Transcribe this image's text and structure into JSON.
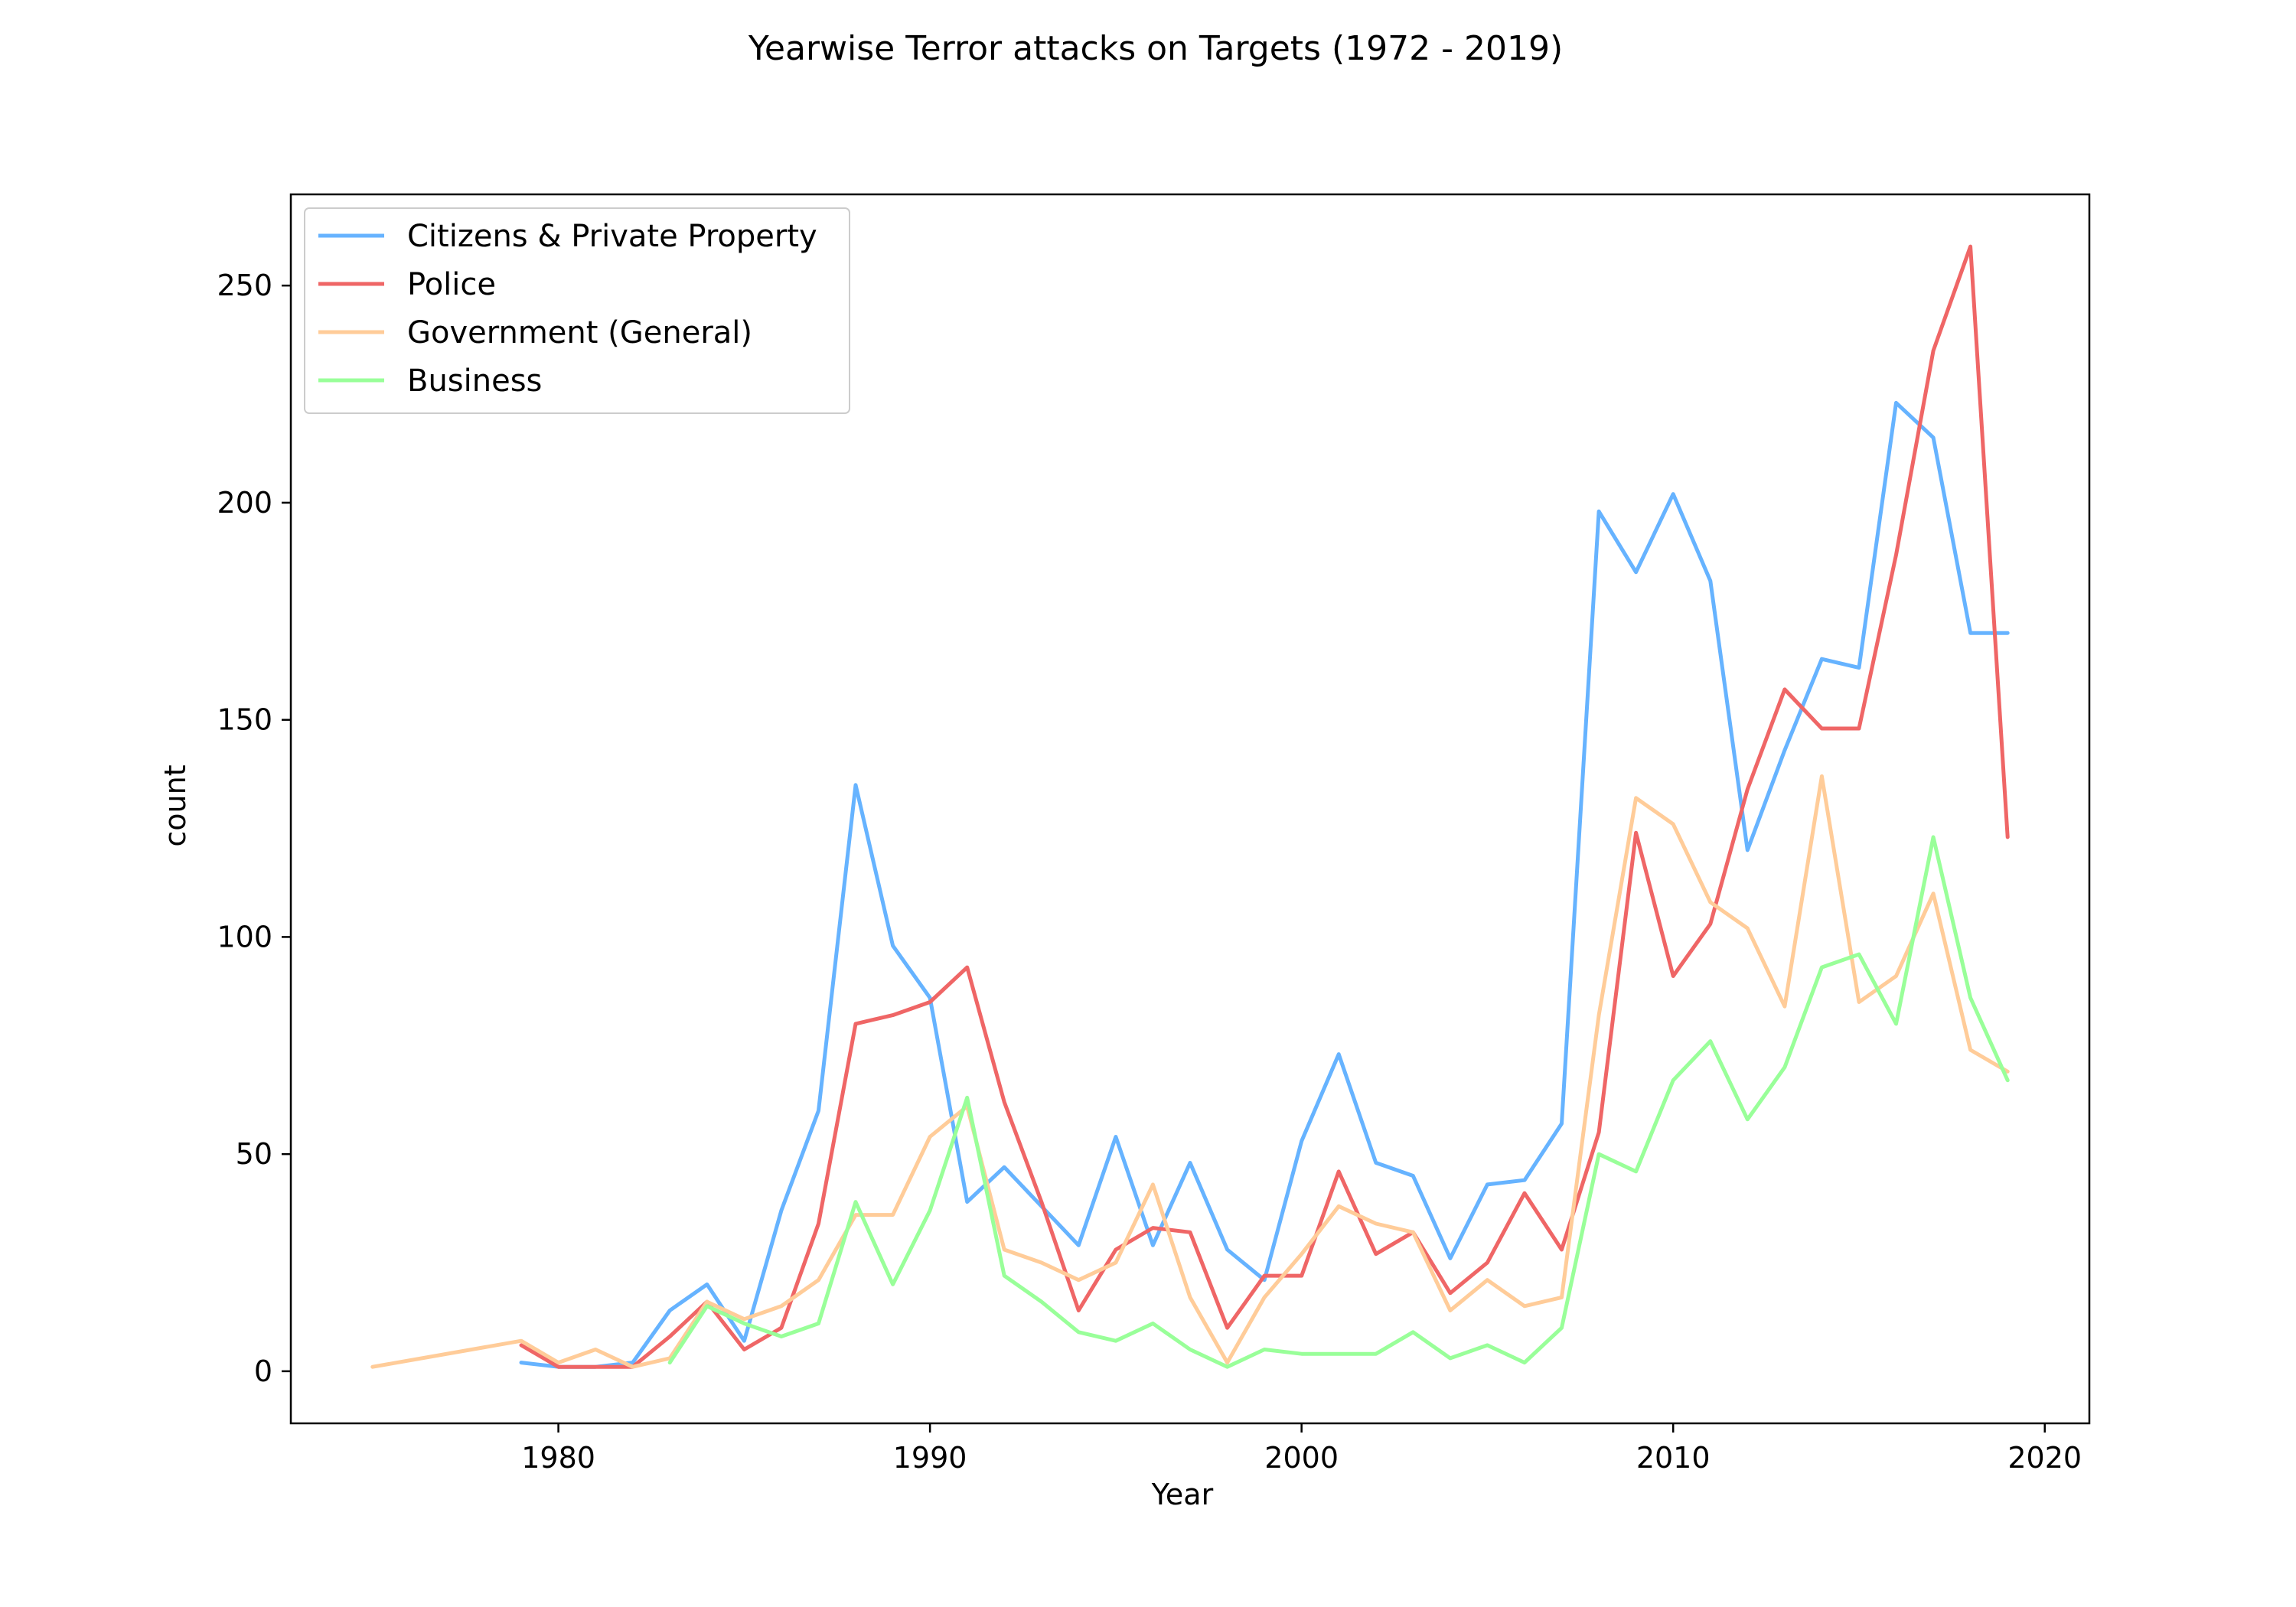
{
  "chart_data": {
    "type": "line",
    "title": "Yearwise Terror attacks on Targets (1972 - 2019)",
    "xlabel": "Year",
    "ylabel": "count",
    "xlim": [
      1972.8,
      2021.2
    ],
    "ylim": [
      -12,
      271
    ],
    "xticks": [
      1980,
      1990,
      2000,
      2010,
      2020
    ],
    "yticks": [
      0,
      50,
      100,
      150,
      200,
      250
    ],
    "grid": false,
    "legend_position": "upper left",
    "series": [
      {
        "name": "Citizens & Private Property",
        "color": "#66b3ff",
        "x": [
          1979,
          1980,
          1981,
          1982,
          1983,
          1984,
          1985,
          1986,
          1987,
          1988,
          1989,
          1990,
          1991,
          1992,
          1993,
          1994,
          1995,
          1996,
          1997,
          1998,
          1999,
          2000,
          2001,
          2002,
          2003,
          2004,
          2005,
          2006,
          2007,
          2008,
          2009,
          2010,
          2011,
          2012,
          2013,
          2014,
          2015,
          2016,
          2017,
          2018,
          2019
        ],
        "y": [
          2,
          1,
          1,
          2,
          14,
          20,
          7,
          37,
          60,
          135,
          98,
          86,
          39,
          47,
          38,
          29,
          54,
          29,
          48,
          28,
          21,
          53,
          73,
          48,
          45,
          26,
          43,
          44,
          57,
          198,
          184,
          202,
          182,
          120,
          143,
          164,
          162,
          223,
          215,
          170,
          170
        ]
      },
      {
        "name": "Police",
        "color": "#ef6666",
        "x": [
          1979,
          1980,
          1981,
          1982,
          1983,
          1984,
          1985,
          1986,
          1987,
          1988,
          1989,
          1990,
          1991,
          1992,
          1993,
          1994,
          1995,
          1996,
          1997,
          1998,
          1999,
          2000,
          2001,
          2002,
          2003,
          2004,
          2005,
          2006,
          2007,
          2008,
          2009,
          2010,
          2011,
          2012,
          2013,
          2014,
          2015,
          2016,
          2017,
          2018,
          2019
        ],
        "y": [
          6,
          1,
          1,
          1,
          8,
          16,
          5,
          10,
          34,
          80,
          82,
          85,
          93,
          62,
          39,
          14,
          28,
          33,
          32,
          10,
          22,
          22,
          46,
          27,
          32,
          18,
          25,
          41,
          28,
          55,
          124,
          91,
          103,
          134,
          157,
          148,
          148,
          188,
          235,
          259,
          123
        ]
      },
      {
        "name": "Government (General)",
        "color": "#ffcc99",
        "x": [
          1975,
          1979,
          1980,
          1981,
          1982,
          1983,
          1984,
          1985,
          1986,
          1987,
          1988,
          1989,
          1990,
          1991,
          1992,
          1993,
          1994,
          1995,
          1996,
          1997,
          1998,
          1999,
          2000,
          2001,
          2002,
          2003,
          2004,
          2005,
          2006,
          2007,
          2008,
          2009,
          2010,
          2011,
          2012,
          2013,
          2014,
          2015,
          2016,
          2017,
          2018,
          2019
        ],
        "y": [
          1,
          7,
          2,
          5,
          1,
          3,
          16,
          12,
          15,
          21,
          36,
          36,
          54,
          61,
          28,
          25,
          21,
          25,
          43,
          17,
          2,
          17,
          27,
          38,
          34,
          32,
          14,
          21,
          15,
          17,
          82,
          132,
          126,
          108,
          102,
          84,
          137,
          85,
          91,
          110,
          74,
          69
        ]
      },
      {
        "name": "Business",
        "color": "#99ff99",
        "x": [
          1983,
          1984,
          1985,
          1986,
          1987,
          1988,
          1989,
          1990,
          1991,
          1992,
          1993,
          1994,
          1995,
          1996,
          1997,
          1998,
          1999,
          2000,
          2001,
          2002,
          2003,
          2004,
          2005,
          2006,
          2007,
          2008,
          2009,
          2010,
          2011,
          2012,
          2013,
          2014,
          2015,
          2016,
          2017,
          2018,
          2019
        ],
        "y": [
          2,
          15,
          11,
          8,
          11,
          39,
          20,
          37,
          63,
          22,
          16,
          9,
          7,
          11,
          5,
          1,
          5,
          4,
          4,
          4,
          9,
          3,
          6,
          2,
          10,
          50,
          46,
          67,
          76,
          58,
          70,
          93,
          96,
          80,
          123,
          86,
          67
        ]
      }
    ]
  }
}
